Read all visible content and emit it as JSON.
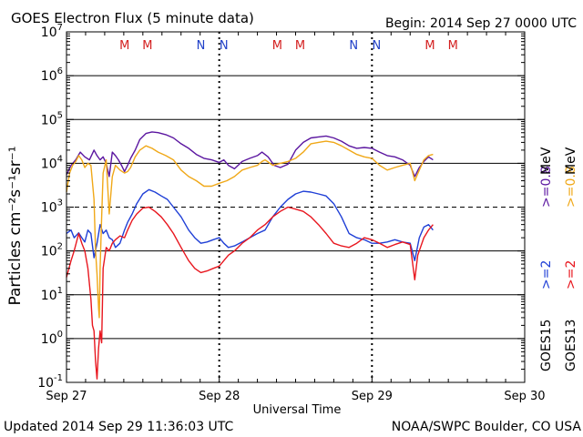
{
  "header": {
    "title": "GOES Electron Flux (5 minute data)",
    "begin": "Begin: 2014 Sep 27 0000 UTC"
  },
  "footer": {
    "updated": "Updated 2014 Sep 29 11:36:03 UTC",
    "credit": "NOAA/SWPC Boulder, CO USA"
  },
  "colors": {
    "goes15_low": "#1f3fd6",
    "goes13_low": "#e8161e",
    "goes15_high": "#5b16a0",
    "goes13_high": "#f0a818",
    "m_marker": "#d42020",
    "n_marker": "#2040c8",
    "axis": "#000000"
  },
  "chart_data": {
    "type": "line",
    "title": "GOES Electron Flux (5 minute data)",
    "xlabel": "Universal Time",
    "ylabel": "Particles cm⁻²s⁻¹sr⁻¹",
    "x_unit": "days since 2014 Sep 27 0000 UTC",
    "xlim": [
      0,
      3
    ],
    "x_tick_labels": [
      {
        "x": 0,
        "label": "Sep 27"
      },
      {
        "x": 1,
        "label": "Sep 28"
      },
      {
        "x": 2,
        "label": "Sep 29"
      },
      {
        "x": 3,
        "label": "Sep 30"
      }
    ],
    "y_scale": "log",
    "ylim": [
      0.1,
      10000000
    ],
    "y_ticks": [
      {
        "value": 10000000,
        "base": "10",
        "exp": "7"
      },
      {
        "value": 1000000,
        "base": "10",
        "exp": "6"
      },
      {
        "value": 100000,
        "base": "10",
        "exp": "5"
      },
      {
        "value": 10000,
        "base": "10",
        "exp": "4"
      },
      {
        "value": 1000,
        "base": "10",
        "exp": "3"
      },
      {
        "value": 100,
        "base": "10",
        "exp": "2"
      },
      {
        "value": 10,
        "base": "10",
        "exp": "1"
      },
      {
        "value": 1,
        "base": "10",
        "exp": "0"
      },
      {
        "value": 0.1,
        "base": "10",
        "exp": "-1"
      }
    ],
    "solid_gridlines": [
      1000000,
      100000,
      10000,
      100,
      10,
      1
    ],
    "dashed_gridlines": [
      1000
    ],
    "markers": [
      {
        "x": 0.38,
        "label": "M",
        "kind": "M"
      },
      {
        "x": 0.53,
        "label": "M",
        "kind": "M"
      },
      {
        "x": 0.88,
        "label": "N",
        "kind": "N"
      },
      {
        "x": 1.03,
        "label": "N",
        "kind": "N"
      },
      {
        "x": 1.38,
        "label": "M",
        "kind": "M"
      },
      {
        "x": 1.53,
        "label": "M",
        "kind": "M"
      },
      {
        "x": 1.88,
        "label": "N",
        "kind": "N"
      },
      {
        "x": 2.03,
        "label": "N",
        "kind": "N"
      },
      {
        "x": 2.38,
        "label": "M",
        "kind": "M"
      },
      {
        "x": 2.53,
        "label": "M",
        "kind": "M"
      }
    ],
    "legend": {
      "placement": "right",
      "left_column": [
        "GOES15",
        ">=2",
        ">=0.8"
      ],
      "right_column": [
        "GOES13",
        ">=2",
        ">=0.8"
      ],
      "unit": "MeV"
    },
    "series": [
      {
        "name": ">=0.8 MeV GOES15",
        "color": "#5b16a0",
        "points": [
          [
            0.0,
            5500
          ],
          [
            0.03,
            9000
          ],
          [
            0.06,
            12000
          ],
          [
            0.09,
            18000
          ],
          [
            0.12,
            14000
          ],
          [
            0.15,
            12000
          ],
          [
            0.18,
            20000
          ],
          [
            0.2,
            15000
          ],
          [
            0.22,
            12000
          ],
          [
            0.24,
            14000
          ],
          [
            0.26,
            10000
          ],
          [
            0.28,
            5000
          ],
          [
            0.3,
            18000
          ],
          [
            0.32,
            15000
          ],
          [
            0.34,
            12000
          ],
          [
            0.36,
            9000
          ],
          [
            0.38,
            6500
          ],
          [
            0.4,
            9000
          ],
          [
            0.42,
            13000
          ],
          [
            0.45,
            20000
          ],
          [
            0.48,
            35000
          ],
          [
            0.52,
            48000
          ],
          [
            0.56,
            52000
          ],
          [
            0.6,
            50000
          ],
          [
            0.65,
            45000
          ],
          [
            0.7,
            38000
          ],
          [
            0.75,
            28000
          ],
          [
            0.8,
            22000
          ],
          [
            0.85,
            16000
          ],
          [
            0.9,
            13000
          ],
          [
            0.95,
            12000
          ],
          [
            1.0,
            10500
          ],
          [
            1.03,
            12000
          ],
          [
            1.06,
            9000
          ],
          [
            1.1,
            7500
          ],
          [
            1.15,
            11000
          ],
          [
            1.2,
            13000
          ],
          [
            1.25,
            15000
          ],
          [
            1.28,
            18000
          ],
          [
            1.32,
            14000
          ],
          [
            1.36,
            9000
          ],
          [
            1.4,
            8000
          ],
          [
            1.45,
            9500
          ],
          [
            1.5,
            20000
          ],
          [
            1.55,
            30000
          ],
          [
            1.6,
            38000
          ],
          [
            1.65,
            40000
          ],
          [
            1.7,
            42000
          ],
          [
            1.75,
            38000
          ],
          [
            1.8,
            32000
          ],
          [
            1.85,
            25000
          ],
          [
            1.9,
            22000
          ],
          [
            1.95,
            23000
          ],
          [
            2.0,
            22000
          ],
          [
            2.05,
            18000
          ],
          [
            2.1,
            15000
          ],
          [
            2.15,
            14000
          ],
          [
            2.2,
            12000
          ],
          [
            2.25,
            9000
          ],
          [
            2.28,
            5000
          ],
          [
            2.31,
            8000
          ],
          [
            2.34,
            11000
          ],
          [
            2.37,
            14000
          ],
          [
            2.4,
            12000
          ]
        ]
      },
      {
        "name": ">=0.8 MeV GOES13",
        "color": "#f0a818",
        "points": [
          [
            0.0,
            2200
          ],
          [
            0.02,
            6000
          ],
          [
            0.04,
            9000
          ],
          [
            0.06,
            11000
          ],
          [
            0.08,
            15000
          ],
          [
            0.1,
            12000
          ],
          [
            0.12,
            8000
          ],
          [
            0.14,
            10000
          ],
          [
            0.16,
            9000
          ],
          [
            0.18,
            1500
          ],
          [
            0.19,
            100
          ],
          [
            0.2,
            30
          ],
          [
            0.21,
            5
          ],
          [
            0.215,
            3
          ],
          [
            0.22,
            40
          ],
          [
            0.23,
            600
          ],
          [
            0.24,
            6000
          ],
          [
            0.26,
            12000
          ],
          [
            0.28,
            700
          ],
          [
            0.3,
            5000
          ],
          [
            0.32,
            9000
          ],
          [
            0.35,
            7000
          ],
          [
            0.38,
            6000
          ],
          [
            0.4,
            6500
          ],
          [
            0.42,
            8000
          ],
          [
            0.45,
            14000
          ],
          [
            0.48,
            20000
          ],
          [
            0.52,
            25000
          ],
          [
            0.56,
            22000
          ],
          [
            0.6,
            18000
          ],
          [
            0.65,
            15000
          ],
          [
            0.7,
            12000
          ],
          [
            0.75,
            7000
          ],
          [
            0.8,
            5000
          ],
          [
            0.85,
            4000
          ],
          [
            0.9,
            3000
          ],
          [
            0.95,
            3000
          ],
          [
            1.0,
            3500
          ],
          [
            1.05,
            4000
          ],
          [
            1.1,
            5000
          ],
          [
            1.15,
            7000
          ],
          [
            1.2,
            8000
          ],
          [
            1.25,
            9000
          ],
          [
            1.28,
            11000
          ],
          [
            1.3,
            12000
          ],
          [
            1.35,
            9000
          ],
          [
            1.4,
            10000
          ],
          [
            1.45,
            11000
          ],
          [
            1.5,
            13000
          ],
          [
            1.55,
            18000
          ],
          [
            1.6,
            28000
          ],
          [
            1.65,
            30000
          ],
          [
            1.7,
            32000
          ],
          [
            1.75,
            30000
          ],
          [
            1.8,
            25000
          ],
          [
            1.85,
            20000
          ],
          [
            1.9,
            16000
          ],
          [
            1.95,
            14000
          ],
          [
            2.0,
            13000
          ],
          [
            2.05,
            9000
          ],
          [
            2.1,
            7000
          ],
          [
            2.15,
            8000
          ],
          [
            2.2,
            9000
          ],
          [
            2.25,
            10000
          ],
          [
            2.28,
            4000
          ],
          [
            2.31,
            7000
          ],
          [
            2.34,
            12000
          ],
          [
            2.37,
            15000
          ],
          [
            2.4,
            16000
          ]
        ]
      },
      {
        "name": ">=2 MeV GOES15",
        "color": "#1f3fd6",
        "points": [
          [
            0.0,
            250
          ],
          [
            0.03,
            300
          ],
          [
            0.05,
            200
          ],
          [
            0.08,
            260
          ],
          [
            0.1,
            200
          ],
          [
            0.12,
            160
          ],
          [
            0.14,
            300
          ],
          [
            0.16,
            250
          ],
          [
            0.18,
            70
          ],
          [
            0.2,
            150
          ],
          [
            0.22,
            400
          ],
          [
            0.24,
            250
          ],
          [
            0.26,
            300
          ],
          [
            0.28,
            200
          ],
          [
            0.3,
            180
          ],
          [
            0.32,
            120
          ],
          [
            0.35,
            150
          ],
          [
            0.38,
            300
          ],
          [
            0.4,
            450
          ],
          [
            0.43,
            700
          ],
          [
            0.46,
            1200
          ],
          [
            0.5,
            2000
          ],
          [
            0.54,
            2500
          ],
          [
            0.58,
            2200
          ],
          [
            0.62,
            1800
          ],
          [
            0.66,
            1500
          ],
          [
            0.7,
            1000
          ],
          [
            0.75,
            600
          ],
          [
            0.8,
            300
          ],
          [
            0.84,
            200
          ],
          [
            0.88,
            150
          ],
          [
            0.92,
            160
          ],
          [
            0.96,
            180
          ],
          [
            1.0,
            200
          ],
          [
            1.03,
            150
          ],
          [
            1.06,
            120
          ],
          [
            1.1,
            130
          ],
          [
            1.15,
            160
          ],
          [
            1.2,
            200
          ],
          [
            1.25,
            250
          ],
          [
            1.3,
            300
          ],
          [
            1.35,
            600
          ],
          [
            1.4,
            1000
          ],
          [
            1.45,
            1500
          ],
          [
            1.5,
            2000
          ],
          [
            1.55,
            2300
          ],
          [
            1.6,
            2200
          ],
          [
            1.65,
            2000
          ],
          [
            1.7,
            1800
          ],
          [
            1.75,
            1200
          ],
          [
            1.8,
            600
          ],
          [
            1.85,
            250
          ],
          [
            1.9,
            200
          ],
          [
            1.95,
            180
          ],
          [
            2.0,
            150
          ],
          [
            2.05,
            150
          ],
          [
            2.1,
            160
          ],
          [
            2.15,
            180
          ],
          [
            2.2,
            160
          ],
          [
            2.25,
            150
          ],
          [
            2.28,
            60
          ],
          [
            2.31,
            200
          ],
          [
            2.34,
            350
          ],
          [
            2.37,
            400
          ],
          [
            2.4,
            300
          ]
        ]
      },
      {
        "name": ">=2 MeV GOES13",
        "color": "#e8161e",
        "points": [
          [
            0.0,
            25
          ],
          [
            0.03,
            60
          ],
          [
            0.05,
            100
          ],
          [
            0.08,
            250
          ],
          [
            0.1,
            150
          ],
          [
            0.12,
            100
          ],
          [
            0.14,
            40
          ],
          [
            0.16,
            8
          ],
          [
            0.17,
            2
          ],
          [
            0.18,
            1.5
          ],
          [
            0.19,
            0.3
          ],
          [
            0.2,
            0.12
          ],
          [
            0.21,
            0.6
          ],
          [
            0.22,
            1.5
          ],
          [
            0.23,
            0.8
          ],
          [
            0.24,
            40
          ],
          [
            0.26,
            120
          ],
          [
            0.28,
            100
          ],
          [
            0.3,
            150
          ],
          [
            0.32,
            180
          ],
          [
            0.35,
            220
          ],
          [
            0.38,
            200
          ],
          [
            0.4,
            300
          ],
          [
            0.43,
            500
          ],
          [
            0.46,
            700
          ],
          [
            0.5,
            950
          ],
          [
            0.54,
            1000
          ],
          [
            0.58,
            800
          ],
          [
            0.62,
            600
          ],
          [
            0.66,
            400
          ],
          [
            0.7,
            250
          ],
          [
            0.75,
            120
          ],
          [
            0.8,
            60
          ],
          [
            0.84,
            40
          ],
          [
            0.88,
            32
          ],
          [
            0.92,
            35
          ],
          [
            0.96,
            40
          ],
          [
            1.0,
            45
          ],
          [
            1.03,
            60
          ],
          [
            1.06,
            80
          ],
          [
            1.1,
            100
          ],
          [
            1.15,
            150
          ],
          [
            1.2,
            200
          ],
          [
            1.25,
            300
          ],
          [
            1.3,
            400
          ],
          [
            1.35,
            600
          ],
          [
            1.4,
            800
          ],
          [
            1.45,
            1000
          ],
          [
            1.5,
            900
          ],
          [
            1.55,
            800
          ],
          [
            1.6,
            600
          ],
          [
            1.65,
            400
          ],
          [
            1.7,
            250
          ],
          [
            1.75,
            150
          ],
          [
            1.8,
            130
          ],
          [
            1.85,
            120
          ],
          [
            1.9,
            150
          ],
          [
            1.95,
            200
          ],
          [
            2.0,
            180
          ],
          [
            2.05,
            150
          ],
          [
            2.1,
            120
          ],
          [
            2.15,
            140
          ],
          [
            2.2,
            160
          ],
          [
            2.25,
            140
          ],
          [
            2.28,
            22
          ],
          [
            2.3,
            80
          ],
          [
            2.34,
            200
          ],
          [
            2.37,
            300
          ],
          [
            2.4,
            400
          ]
        ]
      }
    ]
  }
}
